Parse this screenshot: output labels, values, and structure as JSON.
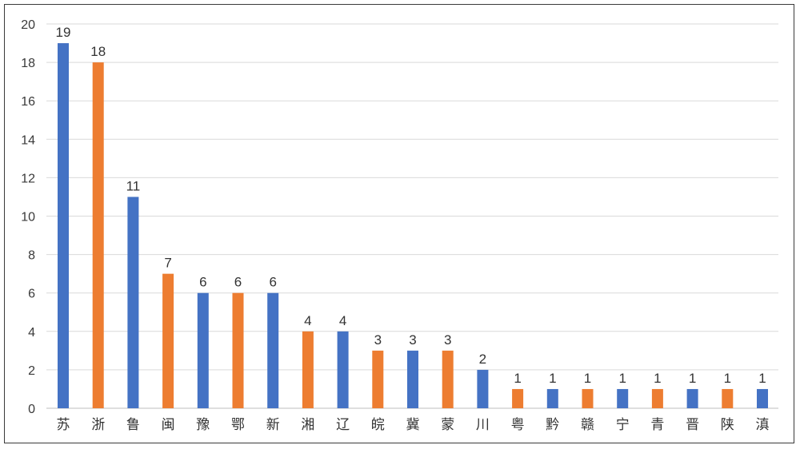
{
  "chart_data": {
    "type": "bar",
    "categories": [
      "苏",
      "浙",
      "鲁",
      "闽",
      "豫",
      "鄂",
      "新",
      "湘",
      "辽",
      "皖",
      "冀",
      "蒙",
      "川",
      "粤",
      "黔",
      "赣",
      "宁",
      "青",
      "晋",
      "陕",
      "滇"
    ],
    "values": [
      19,
      18,
      11,
      7,
      6,
      6,
      6,
      4,
      4,
      3,
      3,
      3,
      2,
      1,
      1,
      1,
      1,
      1,
      1,
      1,
      1
    ],
    "bar_colors": [
      "#4472c4",
      "#ed7d31",
      "#4472c4",
      "#ed7d31",
      "#4472c4",
      "#ed7d31",
      "#4472c4",
      "#ed7d31",
      "#4472c4",
      "#ed7d31",
      "#4472c4",
      "#ed7d31",
      "#4472c4",
      "#ed7d31",
      "#4472c4",
      "#ed7d31",
      "#4472c4",
      "#ed7d31",
      "#4472c4",
      "#ed7d31",
      "#4472c4"
    ],
    "ylim": [
      0,
      20
    ],
    "yticks": [
      0,
      2,
      4,
      6,
      8,
      10,
      12,
      14,
      16,
      18,
      20
    ],
    "grid": true,
    "data_labels": true,
    "colors": {
      "blue": "#4472c4",
      "orange": "#ed7d31",
      "grid": "#d9d9d9",
      "axis": "#bfbfbf"
    }
  }
}
